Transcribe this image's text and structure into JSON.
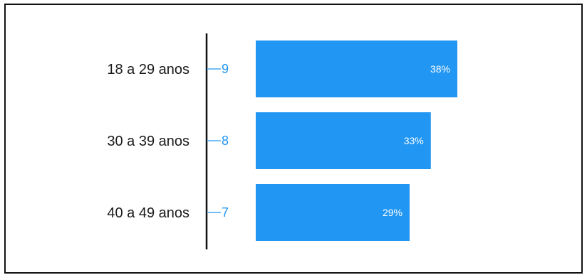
{
  "chart_data": {
    "type": "bar",
    "orientation": "horizontal",
    "categories": [
      "18 a 29 anos",
      "30 a 39 anos",
      "40 a 49 anos"
    ],
    "counts": [
      9,
      8,
      7
    ],
    "values": [
      38,
      33,
      29
    ],
    "value_labels": [
      "38%",
      "33%",
      "29%"
    ],
    "xlim": [
      0,
      100
    ],
    "grid": false,
    "legend": "none",
    "colors": {
      "bar": "#2196F3",
      "count_text": "#2196F3",
      "axis": "#111111",
      "category_text": "#1a1a1a",
      "value_text": "#ffffff"
    }
  }
}
